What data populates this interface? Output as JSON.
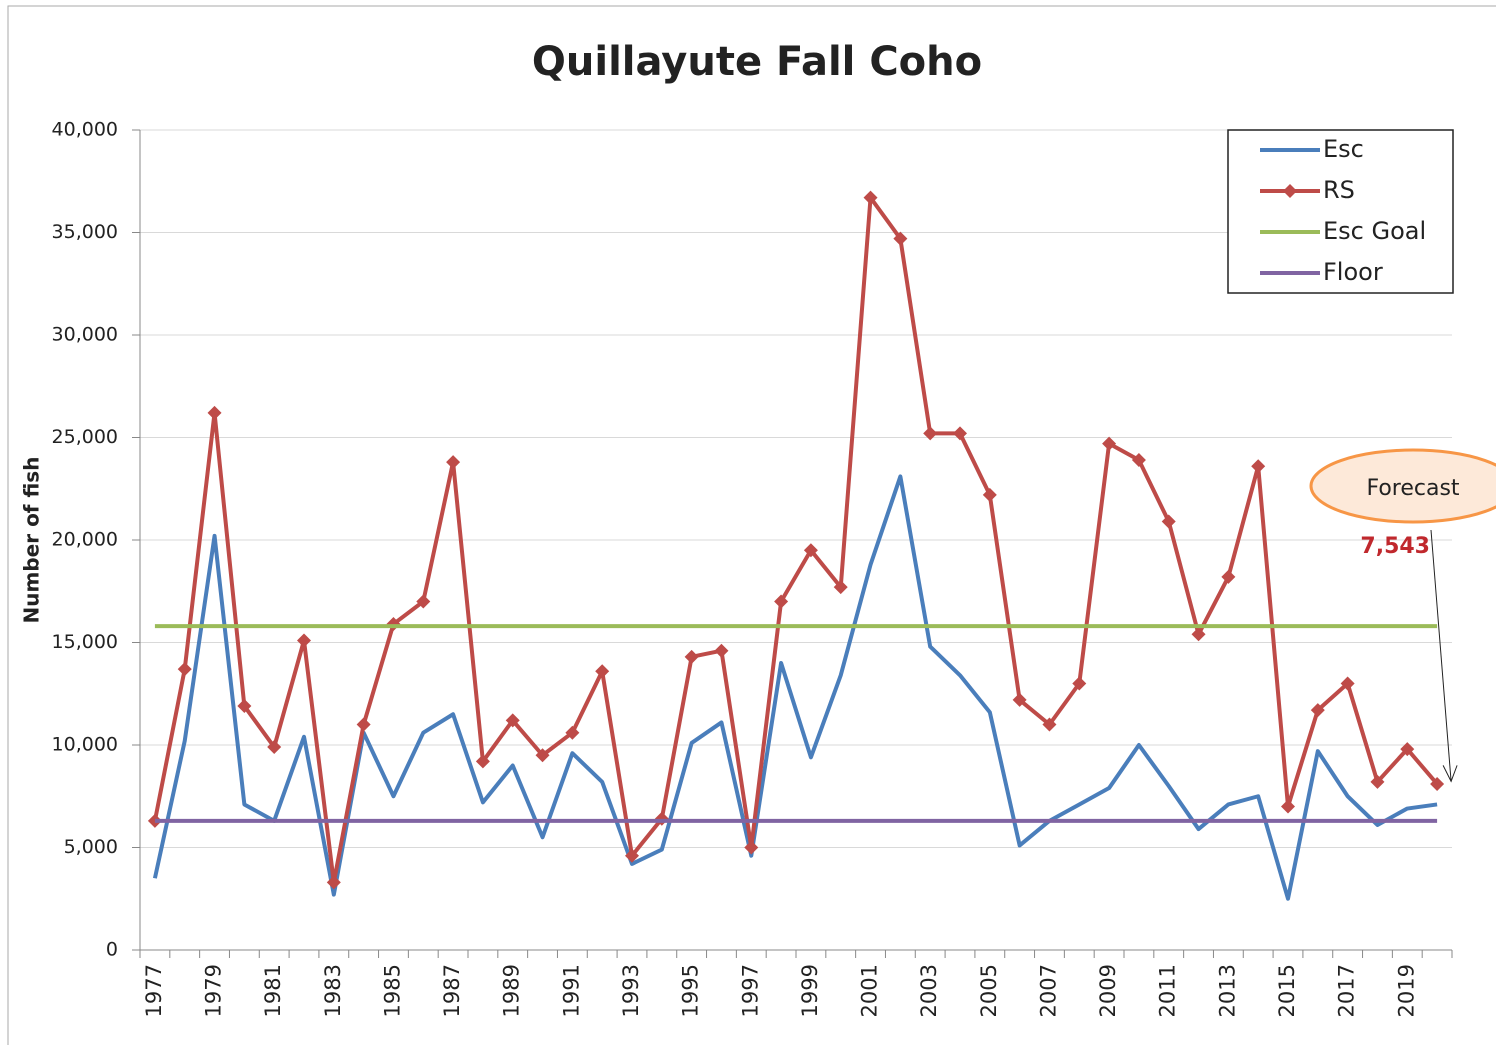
{
  "chart_data": {
    "type": "line",
    "title": "Quillayute Fall Coho",
    "y_label": "Number of fish",
    "categories": [
      "1977",
      null,
      "1979",
      null,
      "1981",
      null,
      "1983",
      null,
      "1985",
      null,
      "1987",
      null,
      "1989",
      null,
      "1991",
      null,
      "1993",
      null,
      "1995",
      null,
      "1997",
      null,
      "1999",
      null,
      "2001",
      null,
      "2003",
      null,
      "2005",
      null,
      "2007",
      null,
      "2009",
      null,
      "2011",
      null,
      "2013",
      null,
      "2015",
      null,
      "2017",
      null,
      "2019",
      null
    ],
    "series": [
      {
        "name": "Esc",
        "color": "#4a7ebb",
        "marker": "none",
        "values": [
          3500,
          10200,
          20200,
          7100,
          6300,
          10400,
          2700,
          10600,
          7500,
          10600,
          11500,
          7200,
          9000,
          5500,
          9600,
          8200,
          4200,
          4900,
          10100,
          11100,
          4600,
          14000,
          9400,
          13400,
          18800,
          23100,
          14800,
          13400,
          11600,
          5100,
          6300,
          7100,
          7900,
          10000,
          8000,
          5900,
          7100,
          7500,
          2500,
          9700,
          7500,
          6100,
          6900,
          7100
        ]
      },
      {
        "name": "RS",
        "color": "#be4b48",
        "marker": "diamond",
        "values": [
          6300,
          13700,
          26200,
          11900,
          9900,
          15100,
          3300,
          11000,
          15900,
          17000,
          23800,
          9200,
          11200,
          9500,
          10600,
          13600,
          4600,
          6400,
          14300,
          14600,
          5000,
          17000,
          19500,
          17700,
          36700,
          34700,
          25200,
          25200,
          22200,
          12200,
          11000,
          13000,
          24700,
          23900,
          20900,
          15400,
          18200,
          23600,
          7000,
          11700,
          13000,
          8200,
          9800,
          8100
        ]
      },
      {
        "name": "Esc Goal",
        "color": "#9bbb59",
        "marker": "none",
        "values": [
          15800,
          15800,
          15800,
          15800,
          15800,
          15800,
          15800,
          15800,
          15800,
          15800,
          15800,
          15800,
          15800,
          15800,
          15800,
          15800,
          15800,
          15800,
          15800,
          15800,
          15800,
          15800,
          15800,
          15800,
          15800,
          15800,
          15800,
          15800,
          15800,
          15800,
          15800,
          15800,
          15800,
          15800,
          15800,
          15800,
          15800,
          15800,
          15800,
          15800,
          15800,
          15800,
          15800,
          15800
        ]
      },
      {
        "name": "Floor",
        "color": "#8064a2",
        "marker": "none",
        "values": [
          6300,
          6300,
          6300,
          6300,
          6300,
          6300,
          6300,
          6300,
          6300,
          6300,
          6300,
          6300,
          6300,
          6300,
          6300,
          6300,
          6300,
          6300,
          6300,
          6300,
          6300,
          6300,
          6300,
          6300,
          6300,
          6300,
          6300,
          6300,
          6300,
          6300,
          6300,
          6300,
          6300,
          6300,
          6300,
          6300,
          6300,
          6300,
          6300,
          6300,
          6300,
          6300,
          6300,
          6300
        ]
      }
    ],
    "ylim": [
      0,
      40000
    ],
    "yticks": [
      0,
      {
        "value": 5000,
        "label": "5,000"
      },
      {
        "value": 10000,
        "label": "10,000"
      },
      {
        "value": 15000,
        "label": "15,000"
      },
      {
        "value": 20000,
        "label": "20,000"
      },
      {
        "value": 25000,
        "label": "25,000"
      },
      {
        "value": 30000,
        "label": "30,000"
      },
      {
        "value": 35000,
        "label": "35,000"
      },
      {
        "value": 40000,
        "label": "40,000"
      }
    ],
    "grid": true,
    "legend": "top-right",
    "annotations": [
      {
        "text": "Forecast"
      },
      {
        "value": 7543,
        "label": "7,543",
        "color": "#c0282d"
      }
    ]
  }
}
